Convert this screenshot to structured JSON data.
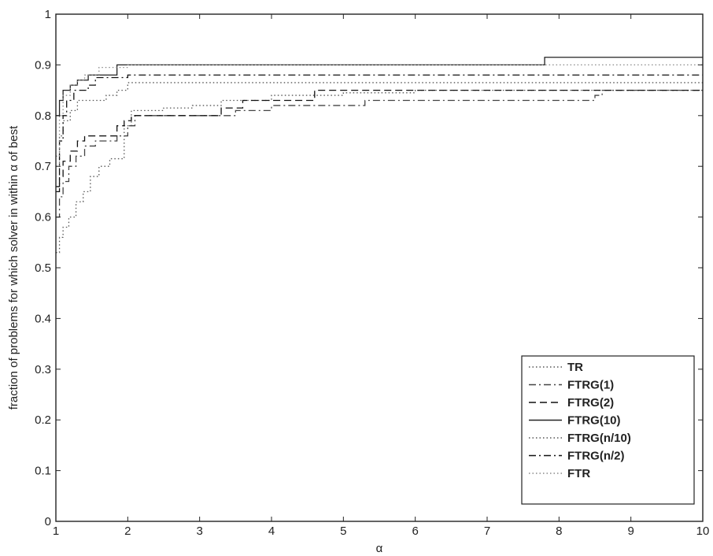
{
  "chart_data": {
    "type": "line",
    "title": "",
    "xlabel": "α",
    "ylabel_parts": [
      "fraction of problems for which solver in within ",
      "α",
      " of best"
    ],
    "xlim": [
      1,
      10
    ],
    "ylim": [
      0,
      1
    ],
    "xticks": [
      1,
      2,
      3,
      4,
      5,
      6,
      7,
      8,
      9,
      10
    ],
    "yticks": [
      0,
      0.1,
      0.2,
      0.3,
      0.4,
      0.5,
      0.6,
      0.7,
      0.8,
      0.9,
      1
    ],
    "ytick_labels": [
      "0",
      "0.1",
      "0.2",
      "0.3",
      "0.4",
      "0.5",
      "0.6",
      "0.7",
      "0.8",
      "0.9",
      "1"
    ],
    "grid": false,
    "legend_position": "bottom-right",
    "step": true,
    "series": [
      {
        "name": "TR",
        "style": "dotted",
        "color": "#555555",
        "points": [
          [
            1,
            0.53
          ],
          [
            1.05,
            0.56
          ],
          [
            1.1,
            0.58
          ],
          [
            1.18,
            0.6
          ],
          [
            1.28,
            0.63
          ],
          [
            1.38,
            0.65
          ],
          [
            1.48,
            0.68
          ],
          [
            1.6,
            0.7
          ],
          [
            1.75,
            0.715
          ],
          [
            1.95,
            0.78
          ],
          [
            2.05,
            0.81
          ],
          [
            2.5,
            0.815
          ],
          [
            2.9,
            0.82
          ],
          [
            3.3,
            0.83
          ],
          [
            4.0,
            0.84
          ],
          [
            5.0,
            0.845
          ],
          [
            6.0,
            0.85
          ],
          [
            10,
            0.85
          ]
        ]
      },
      {
        "name": "FTRG(1)",
        "style": "dashdot",
        "color": "#444444",
        "points": [
          [
            1,
            0.6
          ],
          [
            1.05,
            0.64
          ],
          [
            1.1,
            0.67
          ],
          [
            1.18,
            0.7
          ],
          [
            1.28,
            0.72
          ],
          [
            1.4,
            0.74
          ],
          [
            1.55,
            0.75
          ],
          [
            1.7,
            0.75
          ],
          [
            1.85,
            0.76
          ],
          [
            2.0,
            0.78
          ],
          [
            2.1,
            0.8
          ],
          [
            3.5,
            0.81
          ],
          [
            4.0,
            0.82
          ],
          [
            5.3,
            0.83
          ],
          [
            8.5,
            0.84
          ],
          [
            8.6,
            0.85
          ],
          [
            10,
            0.85
          ]
        ]
      },
      {
        "name": "FTRG(2)",
        "style": "dashed",
        "color": "#111111",
        "points": [
          [
            1,
            0.65
          ],
          [
            1.05,
            0.68
          ],
          [
            1.1,
            0.71
          ],
          [
            1.2,
            0.73
          ],
          [
            1.3,
            0.75
          ],
          [
            1.4,
            0.76
          ],
          [
            1.7,
            0.76
          ],
          [
            1.85,
            0.78
          ],
          [
            1.95,
            0.79
          ],
          [
            2.05,
            0.8
          ],
          [
            3.0,
            0.8
          ],
          [
            3.3,
            0.815
          ],
          [
            3.6,
            0.83
          ],
          [
            4.4,
            0.83
          ],
          [
            4.6,
            0.85
          ],
          [
            10,
            0.85
          ]
        ]
      },
      {
        "name": "FTRG(10)",
        "style": "solid",
        "color": "#222222",
        "points": [
          [
            1,
            0.8
          ],
          [
            1.05,
            0.83
          ],
          [
            1.1,
            0.85
          ],
          [
            1.2,
            0.86
          ],
          [
            1.3,
            0.87
          ],
          [
            1.45,
            0.88
          ],
          [
            1.85,
            0.9
          ],
          [
            7.8,
            0.915
          ],
          [
            10,
            0.915
          ]
        ]
      },
      {
        "name": "FTRG(n/10)",
        "style": "dotted",
        "color": "#555555",
        "points": [
          [
            1,
            0.7
          ],
          [
            1.05,
            0.76
          ],
          [
            1.1,
            0.79
          ],
          [
            1.2,
            0.81
          ],
          [
            1.3,
            0.83
          ],
          [
            1.7,
            0.84
          ],
          [
            1.85,
            0.85
          ],
          [
            2.0,
            0.865
          ],
          [
            10,
            0.865
          ]
        ]
      },
      {
        "name": "FTRG(n/2)",
        "style": "dashdot",
        "color": "#111111",
        "points": [
          [
            1,
            0.66
          ],
          [
            1.05,
            0.75
          ],
          [
            1.1,
            0.8
          ],
          [
            1.15,
            0.83
          ],
          [
            1.25,
            0.85
          ],
          [
            1.45,
            0.86
          ],
          [
            1.55,
            0.875
          ],
          [
            2.0,
            0.88
          ],
          [
            10,
            0.88
          ]
        ]
      },
      {
        "name": "FTR",
        "style": "dotted",
        "color": "#888888",
        "points": [
          [
            1,
            0.72
          ],
          [
            1.05,
            0.8
          ],
          [
            1.1,
            0.84
          ],
          [
            1.2,
            0.86
          ],
          [
            1.3,
            0.87
          ],
          [
            1.4,
            0.88
          ],
          [
            1.6,
            0.895
          ],
          [
            2.0,
            0.9
          ],
          [
            10,
            0.9
          ]
        ]
      }
    ]
  }
}
